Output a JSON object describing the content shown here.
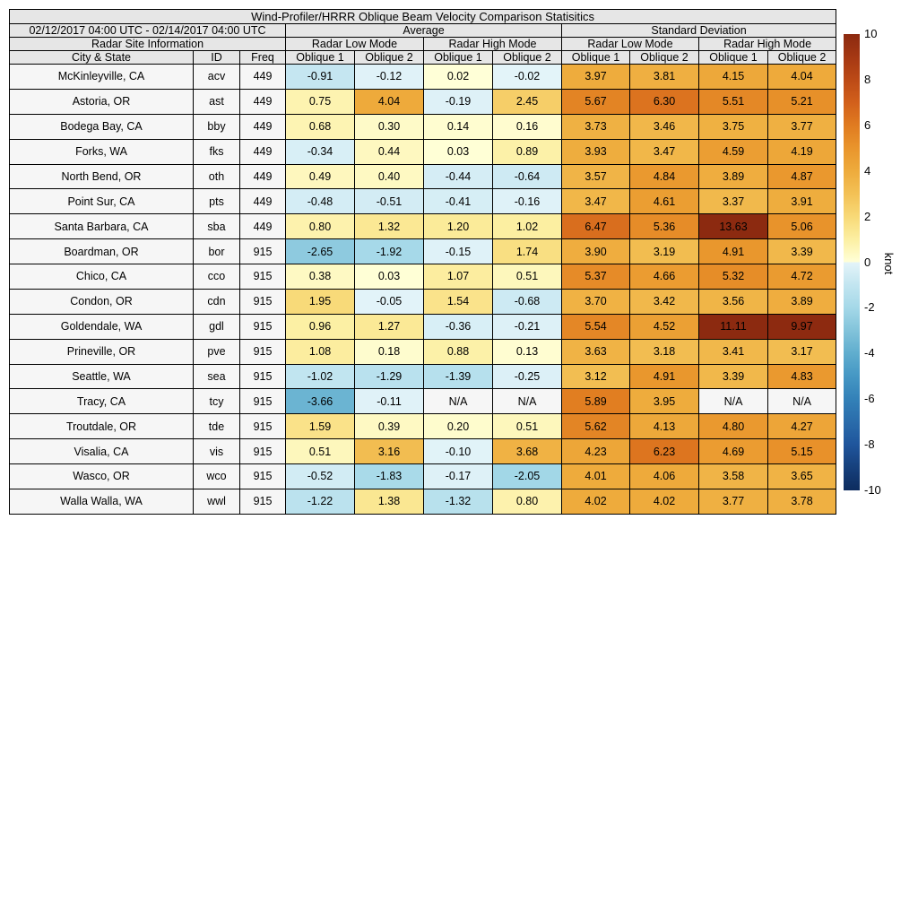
{
  "header": {
    "date_range": "02/12/2017 04:00 UTC - 02/14/2017 04:00 UTC",
    "group_average": "Average",
    "group_std": "Standard Deviation",
    "site_info": "Radar Site Information",
    "mode_labels": [
      "Radar Low Mode",
      "Radar High Mode",
      "Radar Low Mode",
      "Radar High Mode"
    ],
    "columns": [
      "City & State",
      "ID",
      "Freq",
      "Oblique 1",
      "Oblique 2",
      "Oblique 1",
      "Oblique 2",
      "Oblique 1",
      "Oblique 2",
      "Oblique 1",
      "Oblique 2"
    ]
  },
  "chart_data": {
    "type": "heatmap",
    "title": "Wind-Profiler/HRRR Oblique Beam Velocity Comparison Statisitics",
    "colorbar": {
      "label": "knot",
      "vmin": -10,
      "vmax": 10,
      "ticks": [
        10,
        8,
        6,
        4,
        2,
        0,
        -2,
        -4,
        -6,
        -8,
        -10
      ]
    },
    "rows": [
      {
        "city": "McKinleyville, CA",
        "id": "acv",
        "freq": "449",
        "values": [
          "-0.91",
          "-0.12",
          "0.02",
          "-0.02",
          "3.97",
          "3.81",
          "4.15",
          "4.04"
        ]
      },
      {
        "city": "Astoria, OR",
        "id": "ast",
        "freq": "449",
        "values": [
          "0.75",
          "4.04",
          "-0.19",
          "2.45",
          "5.67",
          "6.30",
          "5.51",
          "5.21"
        ]
      },
      {
        "city": "Bodega Bay, CA",
        "id": "bby",
        "freq": "449",
        "values": [
          "0.68",
          "0.30",
          "0.14",
          "0.16",
          "3.73",
          "3.46",
          "3.75",
          "3.77"
        ]
      },
      {
        "city": "Forks, WA",
        "id": "fks",
        "freq": "449",
        "values": [
          "-0.34",
          "0.44",
          "0.03",
          "0.89",
          "3.93",
          "3.47",
          "4.59",
          "4.19"
        ]
      },
      {
        "city": "North Bend, OR",
        "id": "oth",
        "freq": "449",
        "values": [
          "0.49",
          "0.40",
          "-0.44",
          "-0.64",
          "3.57",
          "4.84",
          "3.89",
          "4.87"
        ]
      },
      {
        "city": "Point Sur, CA",
        "id": "pts",
        "freq": "449",
        "values": [
          "-0.48",
          "-0.51",
          "-0.41",
          "-0.16",
          "3.47",
          "4.61",
          "3.37",
          "3.91"
        ]
      },
      {
        "city": "Santa Barbara, CA",
        "id": "sba",
        "freq": "449",
        "values": [
          "0.80",
          "1.32",
          "1.20",
          "1.02",
          "6.47",
          "5.36",
          "13.63",
          "5.06"
        ]
      },
      {
        "city": "Boardman, OR",
        "id": "bor",
        "freq": "915",
        "values": [
          "-2.65",
          "-1.92",
          "-0.15",
          "1.74",
          "3.90",
          "3.19",
          "4.91",
          "3.39"
        ]
      },
      {
        "city": "Chico, CA",
        "id": "cco",
        "freq": "915",
        "values": [
          "0.38",
          "0.03",
          "1.07",
          "0.51",
          "5.37",
          "4.66",
          "5.32",
          "4.72"
        ]
      },
      {
        "city": "Condon, OR",
        "id": "cdn",
        "freq": "915",
        "values": [
          "1.95",
          "-0.05",
          "1.54",
          "-0.68",
          "3.70",
          "3.42",
          "3.56",
          "3.89"
        ]
      },
      {
        "city": "Goldendale, WA",
        "id": "gdl",
        "freq": "915",
        "values": [
          "0.96",
          "1.27",
          "-0.36",
          "-0.21",
          "5.54",
          "4.52",
          "11.11",
          "9.97"
        ]
      },
      {
        "city": "Prineville, OR",
        "id": "pve",
        "freq": "915",
        "values": [
          "1.08",
          "0.18",
          "0.88",
          "0.13",
          "3.63",
          "3.18",
          "3.41",
          "3.17"
        ]
      },
      {
        "city": "Seattle, WA",
        "id": "sea",
        "freq": "915",
        "values": [
          "-1.02",
          "-1.29",
          "-1.39",
          "-0.25",
          "3.12",
          "4.91",
          "3.39",
          "4.83"
        ]
      },
      {
        "city": "Tracy, CA",
        "id": "tcy",
        "freq": "915",
        "values": [
          "-3.66",
          "-0.11",
          "N/A",
          "N/A",
          "5.89",
          "3.95",
          "N/A",
          "N/A"
        ]
      },
      {
        "city": "Troutdale, OR",
        "id": "tde",
        "freq": "915",
        "values": [
          "1.59",
          "0.39",
          "0.20",
          "0.51",
          "5.62",
          "4.13",
          "4.80",
          "4.27"
        ]
      },
      {
        "city": "Visalia, CA",
        "id": "vis",
        "freq": "915",
        "values": [
          "0.51",
          "3.16",
          "-0.10",
          "3.68",
          "4.23",
          "6.23",
          "4.69",
          "5.15"
        ]
      },
      {
        "city": "Wasco, OR",
        "id": "wco",
        "freq": "915",
        "values": [
          "-0.52",
          "-1.83",
          "-0.17",
          "-2.05",
          "4.01",
          "4.06",
          "3.58",
          "3.65"
        ]
      },
      {
        "city": "Walla Walla, WA",
        "id": "wwl",
        "freq": "915",
        "values": [
          "-1.22",
          "1.38",
          "-1.32",
          "0.80",
          "4.02",
          "4.02",
          "3.77",
          "3.78"
        ]
      }
    ]
  },
  "colors": {
    "header_bg": "#e6e6e6",
    "site_bg": "#f6f6f6",
    "na_bg": "#f6f6f6",
    "border": "#000000",
    "positive_stops": [
      [
        0,
        "#ffffd8"
      ],
      [
        1,
        "#fcefa2"
      ],
      [
        2,
        "#f8d977"
      ],
      [
        3,
        "#f3c155"
      ],
      [
        4,
        "#eeab3c"
      ],
      [
        5,
        "#e9952c"
      ],
      [
        6,
        "#e07b20"
      ],
      [
        7,
        "#d2601b"
      ],
      [
        8,
        "#bc4a16"
      ],
      [
        9,
        "#a53813"
      ],
      [
        10,
        "#8c2a10"
      ]
    ],
    "negative_stops": [
      [
        -10,
        "#0d2c5e"
      ],
      [
        -9,
        "#16407c"
      ],
      [
        -8,
        "#1f559c"
      ],
      [
        -7,
        "#2a6cab"
      ],
      [
        -6,
        "#3381b8"
      ],
      [
        -5,
        "#4597c4"
      ],
      [
        -4,
        "#5fadce"
      ],
      [
        -3,
        "#82c3da"
      ],
      [
        -2,
        "#a4d8e8"
      ],
      [
        -1,
        "#c2e5f0"
      ],
      [
        0,
        "#e4f4f9"
      ]
    ]
  }
}
